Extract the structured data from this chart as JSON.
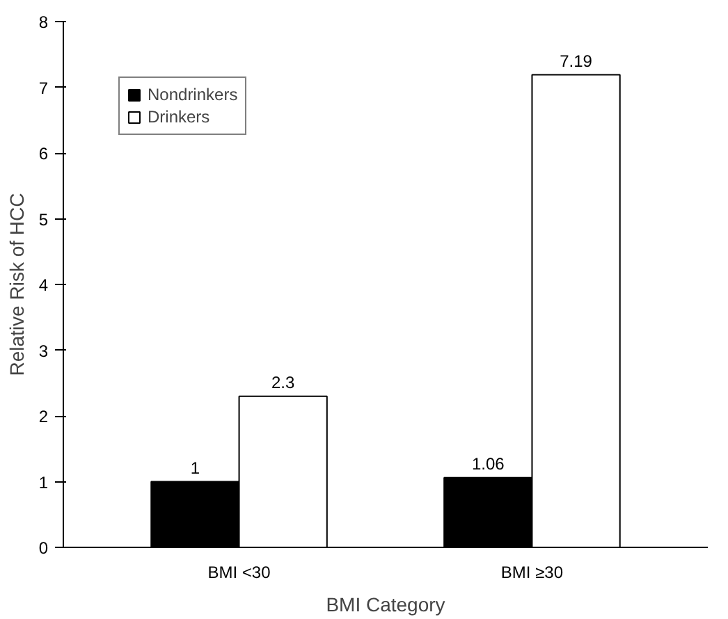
{
  "chart_data": {
    "type": "bar",
    "xlabel": "BMI Category",
    "ylabel": "Relative Risk of HCC",
    "categories": [
      "BMI <30",
      "BMI ≥30"
    ],
    "series": [
      {
        "name": "Nondrinkers",
        "color": "#000000",
        "values": [
          1,
          1.06
        ]
      },
      {
        "name": "Drinkers",
        "color": "#ffffff",
        "values": [
          2.3,
          7.19
        ]
      }
    ],
    "ylim": [
      0,
      8
    ],
    "yticks": [
      0,
      1,
      2,
      3,
      4,
      5,
      6,
      7,
      8
    ],
    "grid": false,
    "legend": "top left",
    "data_labels": true
  }
}
